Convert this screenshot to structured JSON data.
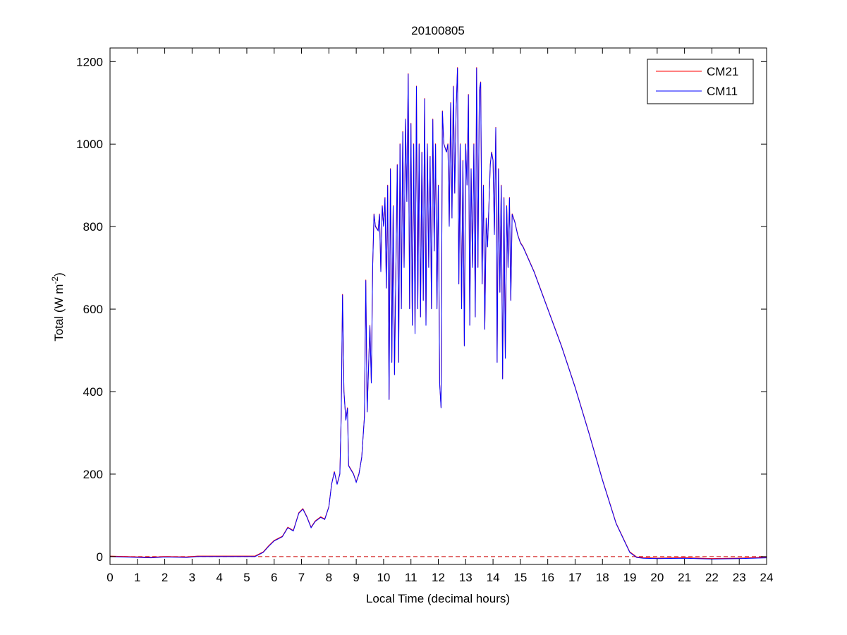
{
  "chart_data": {
    "type": "line",
    "title": "20100805",
    "xlabel": "Local Time (decimal hours)",
    "ylabel_main": "Total (W m",
    "ylabel_sup": "-2",
    "ylabel_end": ")",
    "xlim": [
      0,
      24
    ],
    "ylim": [
      -19,
      1233
    ],
    "xticks": [
      0,
      1,
      2,
      3,
      4,
      5,
      6,
      7,
      8,
      9,
      10,
      11,
      12,
      13,
      14,
      15,
      16,
      17,
      18,
      19,
      20,
      21,
      22,
      23,
      24
    ],
    "yticks": [
      0,
      200,
      400,
      600,
      800,
      1000,
      1200
    ],
    "grid": false,
    "legend_position": "top-right",
    "zero_line": {
      "value": 0,
      "color": "#cc0000",
      "style": "dashed"
    },
    "series": [
      {
        "name": "CM21",
        "color": "#ff0000"
      },
      {
        "name": "CM11",
        "color": "#0000ff"
      }
    ],
    "points": [
      [
        0,
        0
      ],
      [
        1.5,
        -3
      ],
      [
        2,
        -1
      ],
      [
        2.8,
        -2
      ],
      [
        3.2,
        0
      ],
      [
        5.3,
        0
      ],
      [
        5.6,
        10
      ],
      [
        5.8,
        25
      ],
      [
        6,
        38
      ],
      [
        6.3,
        48
      ],
      [
        6.5,
        70
      ],
      [
        6.7,
        62
      ],
      [
        6.9,
        105
      ],
      [
        7.05,
        115
      ],
      [
        7.2,
        95
      ],
      [
        7.35,
        70
      ],
      [
        7.5,
        85
      ],
      [
        7.7,
        95
      ],
      [
        7.85,
        90
      ],
      [
        8,
        120
      ],
      [
        8.1,
        175
      ],
      [
        8.2,
        205
      ],
      [
        8.3,
        175
      ],
      [
        8.4,
        200
      ],
      [
        8.45,
        340
      ],
      [
        8.5,
        635
      ],
      [
        8.55,
        400
      ],
      [
        8.62,
        330
      ],
      [
        8.68,
        360
      ],
      [
        8.72,
        220
      ],
      [
        8.9,
        200
      ],
      [
        9,
        180
      ],
      [
        9.1,
        200
      ],
      [
        9.2,
        240
      ],
      [
        9.3,
        340
      ],
      [
        9.35,
        670
      ],
      [
        9.4,
        350
      ],
      [
        9.5,
        560
      ],
      [
        9.55,
        420
      ],
      [
        9.6,
        700
      ],
      [
        9.65,
        830
      ],
      [
        9.7,
        800
      ],
      [
        9.8,
        790
      ],
      [
        9.85,
        830
      ],
      [
        9.9,
        690
      ],
      [
        9.95,
        850
      ],
      [
        10,
        800
      ],
      [
        10.05,
        870
      ],
      [
        10.1,
        650
      ],
      [
        10.15,
        900
      ],
      [
        10.2,
        380
      ],
      [
        10.25,
        940
      ],
      [
        10.3,
        470
      ],
      [
        10.35,
        850
      ],
      [
        10.4,
        440
      ],
      [
        10.5,
        950
      ],
      [
        10.55,
        470
      ],
      [
        10.6,
        1000
      ],
      [
        10.65,
        600
      ],
      [
        10.7,
        1030
      ],
      [
        10.75,
        700
      ],
      [
        10.8,
        1060
      ],
      [
        10.85,
        860
      ],
      [
        10.9,
        1170
      ],
      [
        10.95,
        600
      ],
      [
        11,
        1050
      ],
      [
        11.05,
        560
      ],
      [
        11.1,
        1000
      ],
      [
        11.15,
        540
      ],
      [
        11.2,
        1140
      ],
      [
        11.25,
        600
      ],
      [
        11.3,
        1000
      ],
      [
        11.35,
        580
      ],
      [
        11.4,
        980
      ],
      [
        11.45,
        620
      ],
      [
        11.5,
        1110
      ],
      [
        11.55,
        560
      ],
      [
        11.6,
        1000
      ],
      [
        11.65,
        700
      ],
      [
        11.7,
        970
      ],
      [
        11.75,
        600
      ],
      [
        11.8,
        1060
      ],
      [
        11.85,
        740
      ],
      [
        11.9,
        1000
      ],
      [
        11.95,
        600
      ],
      [
        12,
        900
      ],
      [
        12.05,
        420
      ],
      [
        12.1,
        360
      ],
      [
        12.15,
        1080
      ],
      [
        12.2,
        1000
      ],
      [
        12.3,
        980
      ],
      [
        12.35,
        1000
      ],
      [
        12.4,
        800
      ],
      [
        12.45,
        1100
      ],
      [
        12.5,
        820
      ],
      [
        12.55,
        1140
      ],
      [
        12.6,
        880
      ],
      [
        12.65,
        1080
      ],
      [
        12.7,
        1185
      ],
      [
        12.75,
        660
      ],
      [
        12.8,
        1000
      ],
      [
        12.85,
        600
      ],
      [
        12.9,
        960
      ],
      [
        12.95,
        510
      ],
      [
        13,
        1000
      ],
      [
        13.05,
        900
      ],
      [
        13.1,
        1120
      ],
      [
        13.15,
        560
      ],
      [
        13.2,
        940
      ],
      [
        13.25,
        700
      ],
      [
        13.3,
        1000
      ],
      [
        13.35,
        580
      ],
      [
        13.4,
        1185
      ],
      [
        13.45,
        700
      ],
      [
        13.5,
        1130
      ],
      [
        13.55,
        1150
      ],
      [
        13.6,
        660
      ],
      [
        13.65,
        900
      ],
      [
        13.7,
        550
      ],
      [
        13.75,
        820
      ],
      [
        13.8,
        750
      ],
      [
        13.9,
        950
      ],
      [
        13.95,
        980
      ],
      [
        14,
        960
      ],
      [
        14.05,
        780
      ],
      [
        14.1,
        1040
      ],
      [
        14.15,
        470
      ],
      [
        14.2,
        940
      ],
      [
        14.25,
        640
      ],
      [
        14.3,
        900
      ],
      [
        14.35,
        430
      ],
      [
        14.4,
        870
      ],
      [
        14.45,
        480
      ],
      [
        14.5,
        850
      ],
      [
        14.55,
        700
      ],
      [
        14.6,
        870
      ],
      [
        14.65,
        620
      ],
      [
        14.7,
        830
      ],
      [
        14.8,
        810
      ],
      [
        14.9,
        780
      ],
      [
        15,
        760
      ],
      [
        15.1,
        750
      ],
      [
        15.3,
        720
      ],
      [
        15.5,
        690
      ],
      [
        16,
        600
      ],
      [
        16.5,
        510
      ],
      [
        17,
        410
      ],
      [
        17.5,
        300
      ],
      [
        18,
        185
      ],
      [
        18.5,
        80
      ],
      [
        19,
        10
      ],
      [
        19.25,
        -2
      ],
      [
        19.5,
        -4
      ],
      [
        20,
        -5
      ],
      [
        21,
        -4
      ],
      [
        22,
        -6
      ],
      [
        23,
        -5
      ],
      [
        24,
        -3
      ]
    ]
  }
}
